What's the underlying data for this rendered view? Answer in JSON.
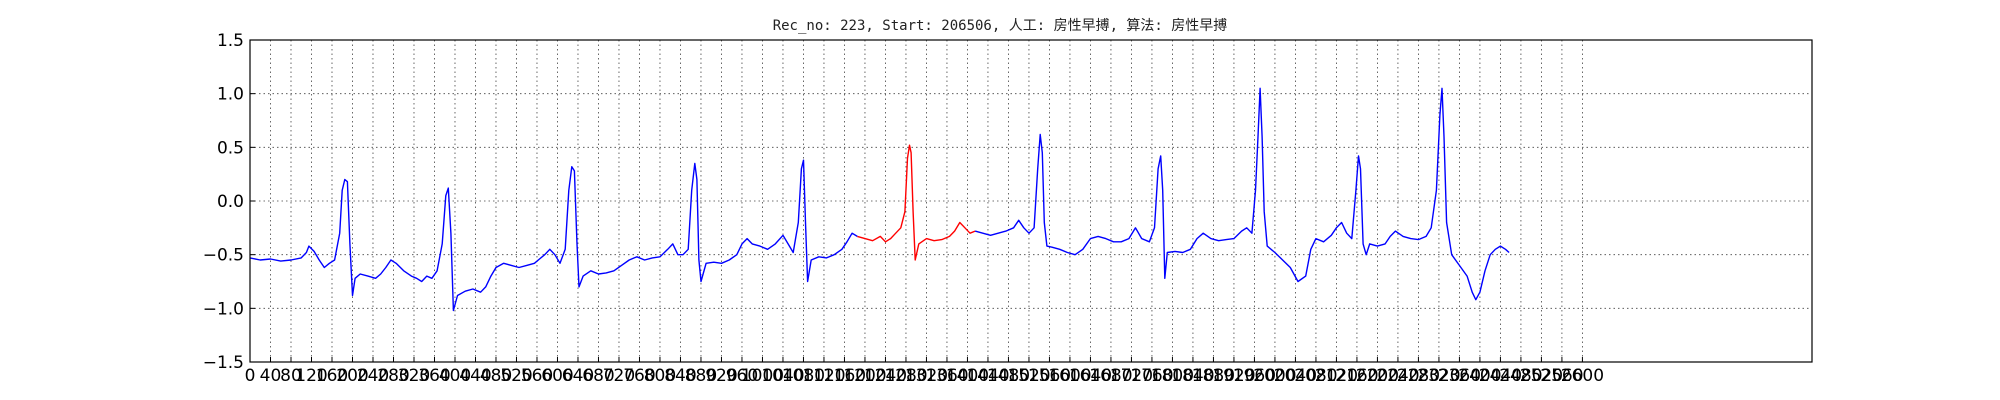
{
  "chart_data": {
    "type": "line",
    "title": "Rec_no: 223, Start: 206506, 人工: 房性早搏, 算法: 房性早搏",
    "xlabel": "",
    "ylabel": "",
    "ylim": [
      -1.5,
      1.5
    ],
    "xlim": [
      0,
      3048
    ],
    "grid": true,
    "x_ticks": [
      0,
      40,
      80,
      120,
      160,
      200,
      240,
      280,
      320,
      360,
      400,
      440,
      480,
      520,
      560,
      600,
      640,
      680,
      720,
      760,
      800,
      840,
      880,
      920,
      960,
      1000,
      1040,
      1080,
      1120,
      1160,
      1200,
      1240,
      1280,
      1320,
      1360,
      1400,
      1440,
      1480,
      1520,
      1560,
      1600,
      1640,
      1680,
      1720,
      1760,
      1800,
      1840,
      1880,
      1920,
      1960,
      2000,
      2040,
      2080,
      2120,
      2160,
      2200,
      2240,
      2280,
      2320,
      2360,
      2400,
      2440,
      2480,
      2520,
      2560,
      2600
    ],
    "y_ticks": [
      "1.5",
      "1.0",
      "0.5",
      "0.0",
      "−0.5",
      "−1.0",
      "−1.5"
    ],
    "y_tick_values": [
      1.5,
      1.0,
      0.5,
      0.0,
      -0.5,
      -1.0,
      -1.5
    ],
    "x_tick_labels": [
      "0",
      "40",
      "80",
      "120",
      "160",
      "200",
      "240",
      "280",
      "320",
      "360",
      "400",
      "440",
      "480",
      "520",
      "560",
      "600",
      "640",
      "680",
      "720",
      "760",
      "800",
      "840",
      "880",
      "920",
      "960",
      "1000",
      "1040",
      "1080",
      "1120",
      "1160",
      "1200",
      "1240",
      "1280",
      "1320",
      "1360",
      "1400",
      "1440",
      "1480",
      "1520",
      "1560",
      "1600",
      "1640",
      "1680",
      "1720",
      "1760",
      "1800",
      "1840",
      "1880",
      "1920",
      "1960",
      "2000",
      "2040",
      "2080",
      "2120",
      "2160",
      "2200",
      "2240",
      "2280",
      "2320",
      "2360",
      "2400",
      "2440",
      "2480",
      "2520",
      "2560",
      "2600"
    ],
    "series": [
      {
        "color": "#0000ff",
        "points": [
          [
            0,
            -0.53
          ],
          [
            20,
            -0.55
          ],
          [
            40,
            -0.54
          ],
          [
            60,
            -0.56
          ],
          [
            80,
            -0.55
          ],
          [
            100,
            -0.53
          ],
          [
            110,
            -0.48
          ],
          [
            115,
            -0.42
          ],
          [
            125,
            -0.47
          ],
          [
            135,
            -0.55
          ],
          [
            145,
            -0.62
          ],
          [
            155,
            -0.58
          ],
          [
            165,
            -0.55
          ],
          [
            175,
            -0.3
          ],
          [
            180,
            0.1
          ],
          [
            185,
            0.2
          ],
          [
            190,
            0.18
          ],
          [
            195,
            -0.4
          ],
          [
            200,
            -0.88
          ],
          [
            205,
            -0.72
          ],
          [
            215,
            -0.68
          ],
          [
            230,
            -0.7
          ],
          [
            245,
            -0.72
          ],
          [
            255,
            -0.68
          ],
          [
            265,
            -0.62
          ],
          [
            275,
            -0.55
          ],
          [
            285,
            -0.58
          ],
          [
            300,
            -0.65
          ],
          [
            315,
            -0.7
          ],
          [
            325,
            -0.72
          ],
          [
            335,
            -0.75
          ],
          [
            345,
            -0.7
          ],
          [
            355,
            -0.72
          ],
          [
            365,
            -0.65
          ],
          [
            375,
            -0.4
          ],
          [
            382,
            0.05
          ],
          [
            387,
            0.12
          ],
          [
            392,
            -0.3
          ],
          [
            397,
            -1.02
          ],
          [
            405,
            -0.88
          ],
          [
            420,
            -0.84
          ],
          [
            435,
            -0.82
          ],
          [
            450,
            -0.85
          ],
          [
            460,
            -0.8
          ],
          [
            470,
            -0.7
          ],
          [
            480,
            -0.62
          ],
          [
            495,
            -0.58
          ],
          [
            510,
            -0.6
          ],
          [
            525,
            -0.62
          ],
          [
            540,
            -0.6
          ],
          [
            555,
            -0.58
          ],
          [
            565,
            -0.54
          ],
          [
            575,
            -0.5
          ],
          [
            585,
            -0.45
          ],
          [
            595,
            -0.5
          ],
          [
            605,
            -0.58
          ],
          [
            615,
            -0.45
          ],
          [
            622,
            0.1
          ],
          [
            628,
            0.32
          ],
          [
            633,
            0.28
          ],
          [
            638,
            -0.4
          ],
          [
            642,
            -0.8
          ],
          [
            650,
            -0.7
          ],
          [
            665,
            -0.65
          ],
          [
            680,
            -0.68
          ],
          [
            695,
            -0.67
          ],
          [
            710,
            -0.65
          ],
          [
            725,
            -0.6
          ],
          [
            740,
            -0.55
          ],
          [
            755,
            -0.52
          ],
          [
            770,
            -0.55
          ],
          [
            785,
            -0.53
          ],
          [
            800,
            -0.52
          ],
          [
            815,
            -0.45
          ],
          [
            825,
            -0.4
          ],
          [
            835,
            -0.5
          ],
          [
            845,
            -0.5
          ],
          [
            855,
            -0.45
          ],
          [
            862,
            0.1
          ],
          [
            868,
            0.35
          ],
          [
            872,
            0.2
          ],
          [
            876,
            -0.55
          ],
          [
            880,
            -0.75
          ],
          [
            890,
            -0.58
          ],
          [
            905,
            -0.57
          ],
          [
            920,
            -0.58
          ],
          [
            935,
            -0.55
          ],
          [
            950,
            -0.5
          ],
          [
            960,
            -0.4
          ],
          [
            970,
            -0.35
          ],
          [
            980,
            -0.4
          ],
          [
            995,
            -0.42
          ],
          [
            1010,
            -0.45
          ],
          [
            1025,
            -0.4
          ],
          [
            1040,
            -0.32
          ],
          [
            1050,
            -0.4
          ],
          [
            1060,
            -0.48
          ],
          [
            1070,
            -0.2
          ],
          [
            1076,
            0.3
          ],
          [
            1080,
            0.38
          ],
          [
            1084,
            -0.2
          ],
          [
            1088,
            -0.75
          ],
          [
            1095,
            -0.55
          ],
          [
            1110,
            -0.52
          ],
          [
            1125,
            -0.53
          ],
          [
            1140,
            -0.5
          ],
          [
            1155,
            -0.45
          ],
          [
            1165,
            -0.38
          ],
          [
            1175,
            -0.3
          ],
          [
            1185,
            -0.33
          ]
        ]
      },
      {
        "color": "#ff0000",
        "points": [
          [
            1185,
            -0.33
          ],
          [
            1200,
            -0.35
          ],
          [
            1215,
            -0.37
          ],
          [
            1230,
            -0.33
          ],
          [
            1240,
            -0.38
          ],
          [
            1250,
            -0.35
          ],
          [
            1260,
            -0.3
          ],
          [
            1270,
            -0.25
          ],
          [
            1278,
            -0.1
          ],
          [
            1283,
            0.4
          ],
          [
            1287,
            0.52
          ],
          [
            1290,
            0.45
          ],
          [
            1294,
            -0.1
          ],
          [
            1298,
            -0.55
          ],
          [
            1305,
            -0.4
          ],
          [
            1320,
            -0.35
          ],
          [
            1335,
            -0.37
          ],
          [
            1350,
            -0.36
          ],
          [
            1365,
            -0.33
          ],
          [
            1375,
            -0.28
          ],
          [
            1385,
            -0.2
          ],
          [
            1395,
            -0.25
          ],
          [
            1405,
            -0.3
          ],
          [
            1415,
            -0.28
          ]
        ]
      },
      {
        "color": "#0000ff",
        "points": [
          [
            1415,
            -0.28
          ],
          [
            1430,
            -0.3
          ],
          [
            1445,
            -0.32
          ],
          [
            1460,
            -0.3
          ],
          [
            1475,
            -0.28
          ],
          [
            1490,
            -0.25
          ],
          [
            1500,
            -0.18
          ],
          [
            1510,
            -0.25
          ],
          [
            1520,
            -0.3
          ],
          [
            1530,
            -0.25
          ],
          [
            1537,
            0.3
          ],
          [
            1542,
            0.62
          ],
          [
            1546,
            0.45
          ],
          [
            1550,
            -0.2
          ],
          [
            1555,
            -0.42
          ],
          [
            1565,
            -0.43
          ],
          [
            1580,
            -0.45
          ],
          [
            1595,
            -0.48
          ],
          [
            1610,
            -0.5
          ],
          [
            1625,
            -0.45
          ],
          [
            1640,
            -0.35
          ],
          [
            1655,
            -0.33
          ],
          [
            1670,
            -0.35
          ],
          [
            1685,
            -0.38
          ],
          [
            1700,
            -0.38
          ],
          [
            1715,
            -0.35
          ],
          [
            1728,
            -0.25
          ],
          [
            1740,
            -0.35
          ],
          [
            1755,
            -0.38
          ],
          [
            1765,
            -0.25
          ],
          [
            1772,
            0.3
          ],
          [
            1777,
            0.42
          ],
          [
            1781,
            0.1
          ],
          [
            1785,
            -0.72
          ],
          [
            1790,
            -0.48
          ],
          [
            1805,
            -0.47
          ],
          [
            1820,
            -0.48
          ],
          [
            1835,
            -0.45
          ],
          [
            1848,
            -0.35
          ],
          [
            1860,
            -0.3
          ],
          [
            1875,
            -0.35
          ],
          [
            1890,
            -0.37
          ],
          [
            1905,
            -0.36
          ],
          [
            1920,
            -0.35
          ],
          [
            1935,
            -0.28
          ],
          [
            1945,
            -0.25
          ],
          [
            1955,
            -0.3
          ],
          [
            1962,
            0.1
          ],
          [
            1967,
            0.6
          ],
          [
            1971,
            1.05
          ],
          [
            1975,
            0.6
          ],
          [
            1979,
            -0.1
          ],
          [
            1985,
            -0.42
          ],
          [
            2000,
            -0.48
          ],
          [
            2015,
            -0.55
          ],
          [
            2030,
            -0.62
          ],
          [
            2045,
            -0.75
          ],
          [
            2060,
            -0.7
          ],
          [
            2070,
            -0.45
          ],
          [
            2080,
            -0.35
          ],
          [
            2095,
            -0.38
          ],
          [
            2110,
            -0.32
          ],
          [
            2120,
            -0.25
          ],
          [
            2130,
            -0.2
          ],
          [
            2140,
            -0.3
          ],
          [
            2150,
            -0.35
          ],
          [
            2158,
            0.1
          ],
          [
            2163,
            0.42
          ],
          [
            2167,
            0.3
          ],
          [
            2172,
            -0.4
          ],
          [
            2178,
            -0.5
          ],
          [
            2185,
            -0.4
          ],
          [
            2200,
            -0.42
          ],
          [
            2215,
            -0.4
          ],
          [
            2225,
            -0.33
          ],
          [
            2235,
            -0.28
          ],
          [
            2250,
            -0.33
          ],
          [
            2265,
            -0.35
          ],
          [
            2280,
            -0.36
          ],
          [
            2295,
            -0.33
          ],
          [
            2305,
            -0.25
          ],
          [
            2315,
            0.1
          ],
          [
            2322,
            0.8
          ],
          [
            2326,
            1.05
          ],
          [
            2330,
            0.6
          ],
          [
            2335,
            -0.2
          ],
          [
            2345,
            -0.5
          ],
          [
            2360,
            -0.6
          ],
          [
            2375,
            -0.7
          ],
          [
            2385,
            -0.85
          ],
          [
            2392,
            -0.92
          ],
          [
            2400,
            -0.85
          ],
          [
            2410,
            -0.65
          ],
          [
            2420,
            -0.5
          ],
          [
            2430,
            -0.45
          ],
          [
            2440,
            -0.42
          ],
          [
            2450,
            -0.45
          ],
          [
            2457,
            -0.48
          ]
        ]
      }
    ]
  }
}
